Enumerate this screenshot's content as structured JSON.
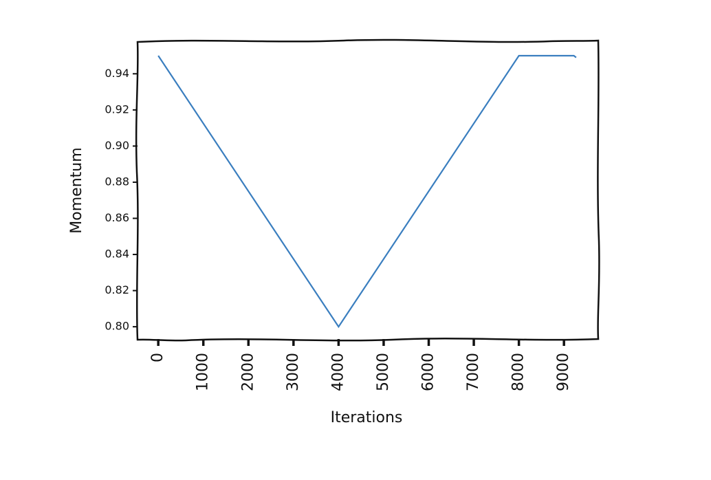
{
  "chart_data": {
    "type": "line",
    "x_label": "Iterations",
    "y_label": "Momentum",
    "x": [
      0,
      4000,
      8000,
      9220,
      9270
    ],
    "values": [
      0.95,
      0.8,
      0.95,
      0.95,
      0.949
    ],
    "color": "#3a7ebf",
    "xlim": [
      -460,
      9760
    ],
    "xticks": [
      0,
      1000,
      2000,
      3000,
      4000,
      5000,
      6000,
      7000,
      8000,
      9000
    ],
    "ylim": [
      0.7932,
      0.958
    ],
    "yticks": [
      {
        "value": 0.8,
        "label": "0.80"
      },
      0.82,
      0.84,
      0.86,
      0.88,
      {
        "value": 0.9,
        "label": "0.90"
      },
      0.92,
      0.94
    ],
    "grid": false
  }
}
